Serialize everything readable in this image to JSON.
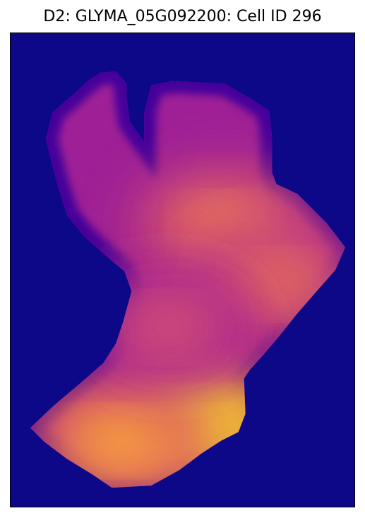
{
  "figure": {
    "title": "D2: GLYMA_05G092200: Cell ID 296"
  },
  "chart_data": {
    "type": "heatmap",
    "title": "D2: GLYMA_05G092200: Cell ID 296",
    "xlabel": "",
    "ylabel": "",
    "axes_ticks": "none",
    "grid": false,
    "legend": "none",
    "colormap": "plasma",
    "colormap_stops": [
      "#0d0887",
      "#6a00a8",
      "#b12a90",
      "#e16462",
      "#fca636",
      "#f0f921"
    ],
    "background_color": "#0d0887",
    "background_value": 0.0,
    "cell_region": {
      "base_value": 0.35,
      "hotspots": [
        {
          "name": "lower-left lobe peak",
          "x": 0.57,
          "y": 0.82,
          "value": 1.0
        },
        {
          "name": "lower-left lobe shoulder",
          "x": 0.32,
          "y": 0.86,
          "value": 0.82
        },
        {
          "name": "upper band",
          "x": 0.62,
          "y": 0.41,
          "value": 0.7
        },
        {
          "name": "right arm",
          "x": 0.77,
          "y": 0.53,
          "value": 0.66
        },
        {
          "name": "middle band",
          "x": 0.46,
          "y": 0.62,
          "value": 0.55
        }
      ]
    }
  }
}
